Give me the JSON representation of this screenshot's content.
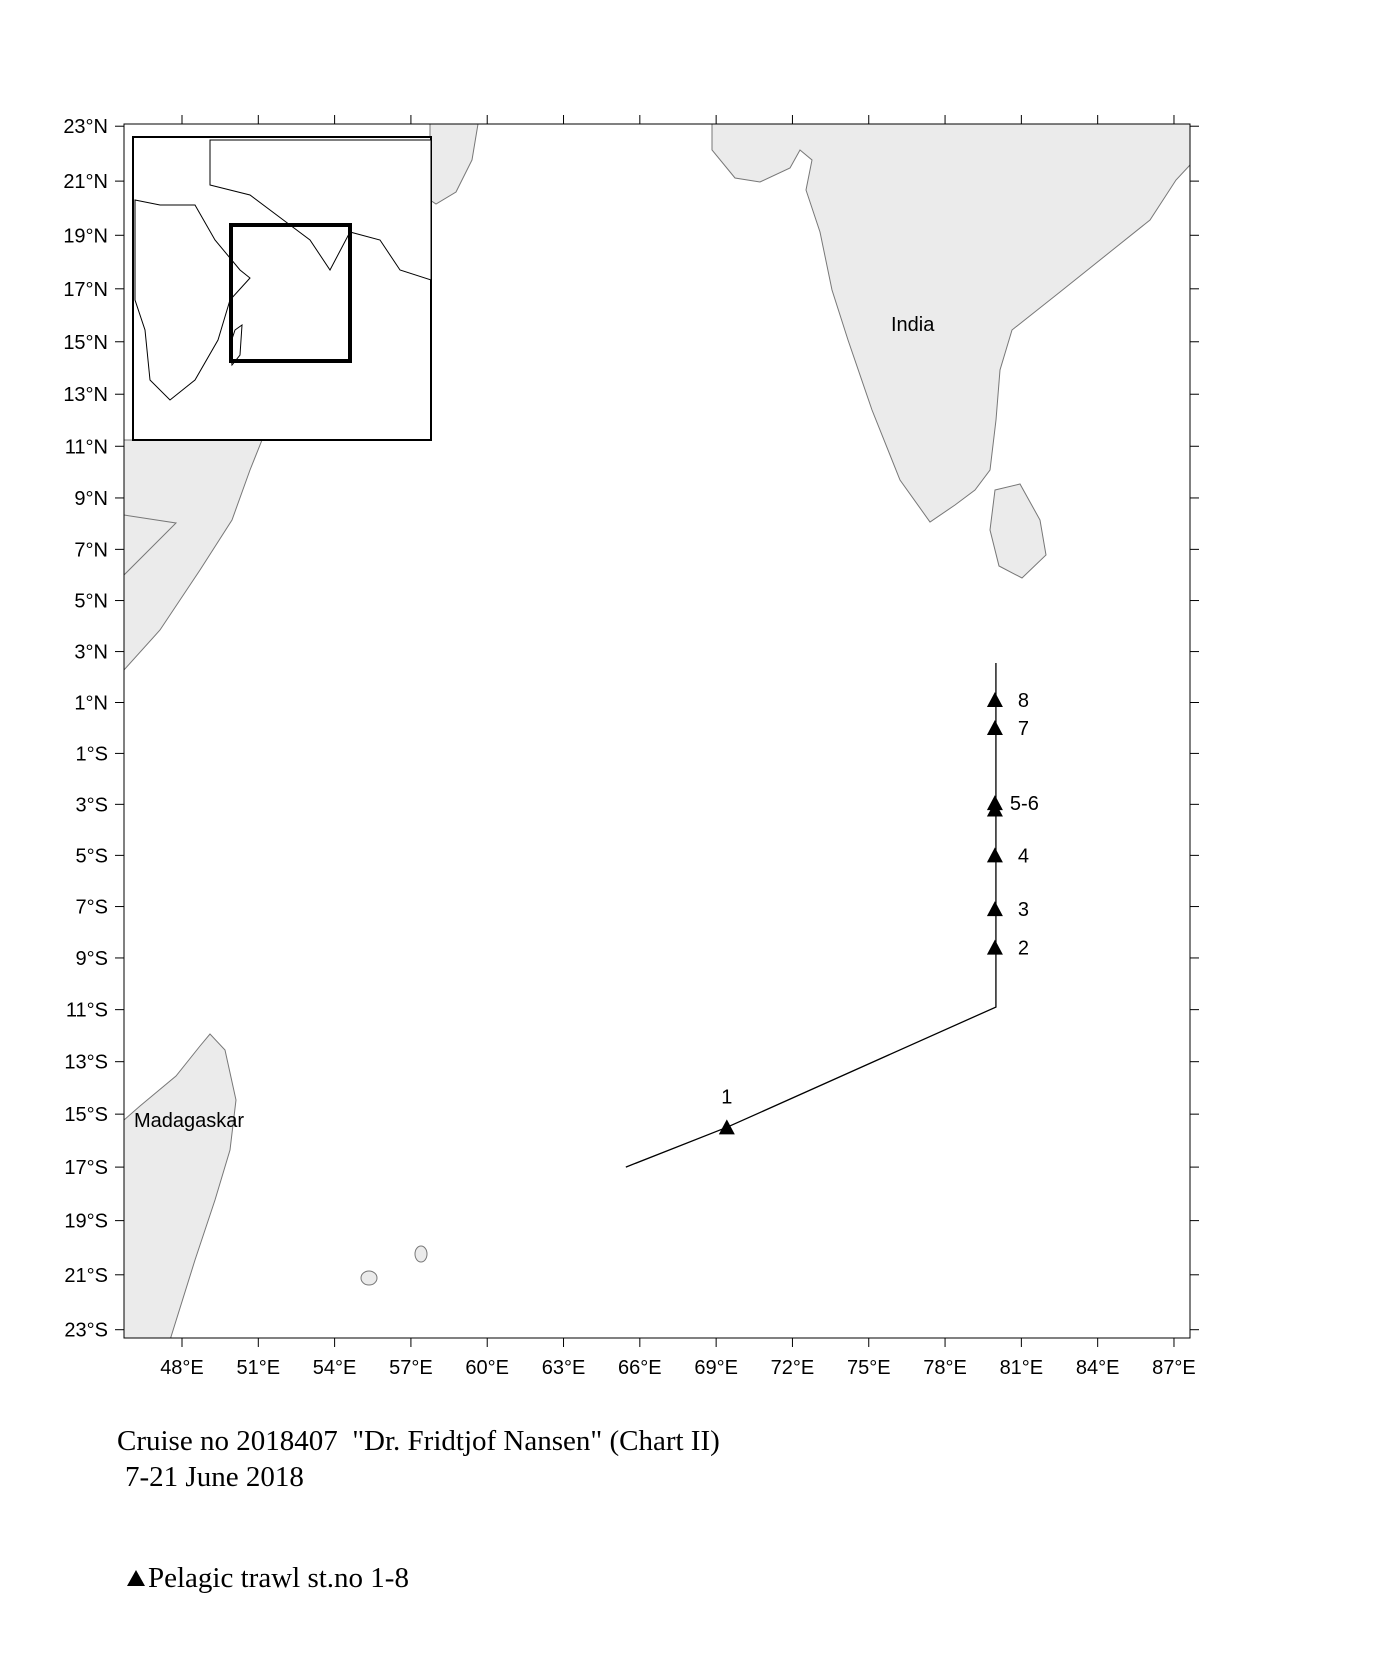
{
  "map": {
    "xlim": [
      45.72,
      87.63
    ],
    "ylim": [
      -23.3,
      23.08
    ],
    "xticks": [
      {
        "value": 48,
        "label": "48°E"
      },
      {
        "value": 51,
        "label": "51°E"
      },
      {
        "value": 54,
        "label": "54°E"
      },
      {
        "value": 57,
        "label": "57°E"
      },
      {
        "value": 60,
        "label": "60°E"
      },
      {
        "value": 63,
        "label": "63°E"
      },
      {
        "value": 66,
        "label": "66°E"
      },
      {
        "value": 69,
        "label": "69°E"
      },
      {
        "value": 72,
        "label": "72°E"
      },
      {
        "value": 75,
        "label": "75°E"
      },
      {
        "value": 78,
        "label": "78°E"
      },
      {
        "value": 81,
        "label": "81°E"
      },
      {
        "value": 84,
        "label": "84°E"
      },
      {
        "value": 87,
        "label": "87°E"
      }
    ],
    "yticks": [
      {
        "value": 23,
        "label": "23°N"
      },
      {
        "value": 21,
        "label": "21°N"
      },
      {
        "value": 19,
        "label": "19°N"
      },
      {
        "value": 17,
        "label": "17°N"
      },
      {
        "value": 15,
        "label": "15°N"
      },
      {
        "value": 13,
        "label": "13°N"
      },
      {
        "value": 11,
        "label": "11°N"
      },
      {
        "value": 9,
        "label": "9°N"
      },
      {
        "value": 7,
        "label": "7°N"
      },
      {
        "value": 5,
        "label": "5°N"
      },
      {
        "value": 3,
        "label": "3°N"
      },
      {
        "value": 1,
        "label": "1°N"
      },
      {
        "value": -1,
        "label": "1°S"
      },
      {
        "value": -3,
        "label": "3°S"
      },
      {
        "value": -5,
        "label": "5°S"
      },
      {
        "value": -7,
        "label": "7°S"
      },
      {
        "value": -9,
        "label": "9°S"
      },
      {
        "value": -11,
        "label": "11°S"
      },
      {
        "value": -13,
        "label": "13°S"
      },
      {
        "value": -15,
        "label": "15°S"
      },
      {
        "value": -17,
        "label": "17°S"
      },
      {
        "value": -19,
        "label": "19°S"
      },
      {
        "value": -21,
        "label": "21°S"
      },
      {
        "value": -23,
        "label": "23°S"
      }
    ],
    "places": [
      "India",
      "Madagaskar"
    ],
    "track": {
      "lon": [
        65.45,
        69.42,
        80.0,
        80.0
      ],
      "lat": [
        -17.0,
        -15.5,
        -10.9,
        2.55
      ]
    },
    "stations": [
      {
        "label": "1",
        "lon": 69.42,
        "lat": -15.5
      },
      {
        "label": "2",
        "lon": 79.96,
        "lat": -8.6
      },
      {
        "label": "3",
        "lon": 79.96,
        "lat": -7.1
      },
      {
        "label": "4",
        "lon": 79.96,
        "lat": -5.0
      },
      {
        "label": "5-6",
        "lon": 79.96,
        "lat": -2.95
      },
      {
        "label": null,
        "lon": 79.96,
        "lat": -3.2
      },
      {
        "label": "7",
        "lon": 79.96,
        "lat": 0.0
      },
      {
        "label": "8",
        "lon": 79.96,
        "lat": 1.1
      }
    ]
  },
  "caption": {
    "title": "Cruise no 2018407  \"Dr. Fridtjof Nansen\" (Chart II)",
    "dates": "7-21 June 2018",
    "legend": "Pelagic trawl st.no 1-8"
  }
}
